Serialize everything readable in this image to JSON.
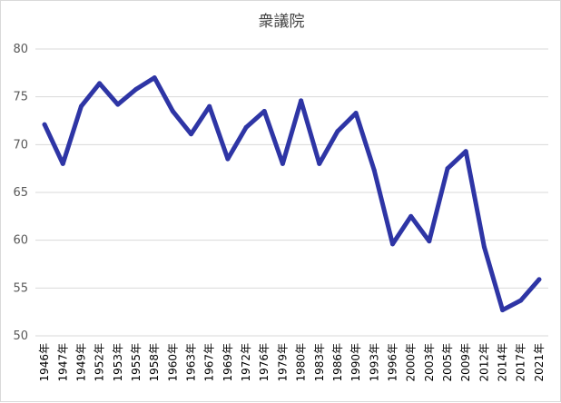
{
  "chart_data": {
    "type": "line",
    "title": "衆議院",
    "xlabel": "",
    "ylabel": "",
    "ylim": [
      50,
      80
    ],
    "yticks": [
      "50",
      "55",
      "60",
      "65",
      "70",
      "75",
      "80"
    ],
    "grid": true,
    "colors": {
      "series": "#2e35a5",
      "grid": "#d9d9d9"
    },
    "categories": [
      "1946年",
      "1947年",
      "1949年",
      "1952年",
      "1953年",
      "1955年",
      "1958年",
      "1960年",
      "1963年",
      "1967年",
      "1969年",
      "1972年",
      "1976年",
      "1979年",
      "1980年",
      "1983年",
      "1986年",
      "1990年",
      "1993年",
      "1996年",
      "2000年",
      "2003年",
      "2005年",
      "2009年",
      "2012年",
      "2014年",
      "2017年",
      "2021年"
    ],
    "series": [
      {
        "values": [
          72.1,
          68.0,
          74.0,
          76.4,
          74.2,
          75.8,
          77.0,
          73.5,
          71.1,
          74.0,
          68.5,
          71.8,
          73.5,
          68.0,
          74.6,
          68.0,
          71.4,
          73.3,
          67.3,
          59.6,
          62.5,
          59.9,
          67.5,
          69.3,
          59.3,
          52.7,
          53.7,
          55.9
        ]
      }
    ]
  }
}
